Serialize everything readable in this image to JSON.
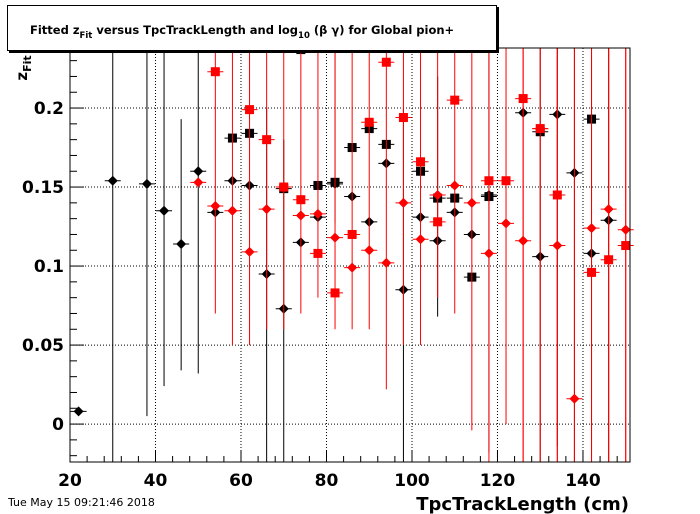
{
  "title": {
    "prefix": "Fitted  z",
    "sub": "Fit",
    "middle": "  versus TpcTrackLength and log",
    "sub2": "10",
    "suffix": " (β γ) for Global pion+"
  },
  "footer": "Tue May 15 09:21:46 2018",
  "colors": {
    "black_series": "#000000",
    "red_series": "#ff0000",
    "frame": "#000000"
  },
  "chart_data": {
    "type": "scatter",
    "title": "Fitted  zFit  versus TpcTrackLength and log10 (β γ) for Global pion+",
    "xlabel": "TpcTrackLength (cm)",
    "ylabel": "zFit",
    "xlim": [
      20,
      151
    ],
    "ylim": [
      -0.024,
      0.238
    ],
    "xticks": [
      20,
      40,
      60,
      80,
      100,
      120,
      140
    ],
    "xtick_labels": [
      "20",
      "40",
      "60",
      "80",
      "100",
      "120",
      "140"
    ],
    "yticks": [
      0,
      0.05,
      0.1,
      0.15,
      0.2
    ],
    "ytick_labels": [
      "0",
      "0.05",
      "0.1",
      "0.15",
      "0.2"
    ],
    "grid": true,
    "series": [
      {
        "marker": "square",
        "color": "#000000",
        "points": [
          {
            "x": 58,
            "y": 0.181,
            "ylo": 0.181,
            "yhi": 0.181
          },
          {
            "x": 62,
            "y": 0.184,
            "ylo": 0.184,
            "yhi": 0.184
          },
          {
            "x": 70,
            "y": 0.149,
            "ylo": 0.149,
            "yhi": 0.149
          },
          {
            "x": 74,
            "y": 0.237,
            "ylo": 0.237,
            "yhi": 0.237
          },
          {
            "x": 78,
            "y": 0.151,
            "ylo": 0.151,
            "yhi": 0.151
          },
          {
            "x": 82,
            "y": 0.153,
            "ylo": 0.127,
            "yhi": 0.238
          },
          {
            "x": 86,
            "y": 0.175,
            "ylo": 0.175,
            "yhi": 0.175
          },
          {
            "x": 90,
            "y": 0.187,
            "ylo": 0.187,
            "yhi": 0.187
          },
          {
            "x": 94,
            "y": 0.177,
            "ylo": 0.177,
            "yhi": 0.177
          },
          {
            "x": 102,
            "y": 0.16,
            "ylo": 0.16,
            "yhi": 0.16
          },
          {
            "x": 106,
            "y": 0.143,
            "ylo": 0.143,
            "yhi": 0.143
          },
          {
            "x": 110,
            "y": 0.143,
            "ylo": 0.143,
            "yhi": 0.143
          },
          {
            "x": 114,
            "y": 0.093,
            "ylo": 0.093,
            "yhi": 0.093
          },
          {
            "x": 118,
            "y": 0.144,
            "ylo": 0.144,
            "yhi": 0.144
          },
          {
            "x": 130,
            "y": 0.185,
            "ylo": 0.185,
            "yhi": 0.185
          },
          {
            "x": 142,
            "y": 0.193,
            "ylo": 0.193,
            "yhi": 0.193
          }
        ]
      },
      {
        "marker": "diamond",
        "color": "#000000",
        "points": [
          {
            "x": 22,
            "y": 0.008,
            "ylo": 0.008,
            "yhi": 0.008
          },
          {
            "x": 30,
            "y": 0.154,
            "ylo": -0.024,
            "yhi": 0.238
          },
          {
            "x": 38,
            "y": 0.152,
            "ylo": 0.005,
            "yhi": 0.238
          },
          {
            "x": 42,
            "y": 0.135,
            "ylo": 0.024,
            "yhi": 0.238
          },
          {
            "x": 46,
            "y": 0.114,
            "ylo": 0.034,
            "yhi": 0.193
          },
          {
            "x": 50,
            "y": 0.16,
            "ylo": 0.032,
            "yhi": 0.238
          },
          {
            "x": 54,
            "y": 0.134,
            "ylo": 0.134,
            "yhi": 0.134
          },
          {
            "x": 58,
            "y": 0.154,
            "ylo": 0.154,
            "yhi": 0.154
          },
          {
            "x": 62,
            "y": 0.151,
            "ylo": 0.151,
            "yhi": 0.151
          },
          {
            "x": 66,
            "y": 0.095,
            "ylo": -0.024,
            "yhi": 0.2
          },
          {
            "x": 70,
            "y": 0.073,
            "ylo": -0.024,
            "yhi": 0.18
          },
          {
            "x": 74,
            "y": 0.115,
            "ylo": 0.115,
            "yhi": 0.115
          },
          {
            "x": 78,
            "y": 0.131,
            "ylo": 0.131,
            "yhi": 0.131
          },
          {
            "x": 82,
            "y": 0.152,
            "ylo": 0.152,
            "yhi": 0.152
          },
          {
            "x": 86,
            "y": 0.144,
            "ylo": 0.144,
            "yhi": 0.144
          },
          {
            "x": 90,
            "y": 0.128,
            "ylo": 0.128,
            "yhi": 0.128
          },
          {
            "x": 94,
            "y": 0.165,
            "ylo": 0.165,
            "yhi": 0.165
          },
          {
            "x": 98,
            "y": 0.085,
            "ylo": -0.024,
            "yhi": 0.2
          },
          {
            "x": 102,
            "y": 0.131,
            "ylo": 0.131,
            "yhi": 0.131
          },
          {
            "x": 106,
            "y": 0.116,
            "ylo": 0.068,
            "yhi": 0.22
          },
          {
            "x": 110,
            "y": 0.134,
            "ylo": 0.134,
            "yhi": 0.134
          },
          {
            "x": 114,
            "y": 0.12,
            "ylo": 0.12,
            "yhi": 0.12
          },
          {
            "x": 118,
            "y": 0.145,
            "ylo": -0.018,
            "yhi": 0.238
          },
          {
            "x": 126,
            "y": 0.197,
            "ylo": 0.197,
            "yhi": 0.197
          },
          {
            "x": 130,
            "y": 0.106,
            "ylo": -0.024,
            "yhi": 0.238
          },
          {
            "x": 134,
            "y": 0.196,
            "ylo": -0.014,
            "yhi": 0.238
          },
          {
            "x": 138,
            "y": 0.159,
            "ylo": -0.024,
            "yhi": 0.238
          },
          {
            "x": 142,
            "y": 0.108,
            "ylo": -0.024,
            "yhi": 0.238
          },
          {
            "x": 146,
            "y": 0.129,
            "ylo": -0.024,
            "yhi": 0.238
          }
        ]
      },
      {
        "marker": "square",
        "color": "#ff0000",
        "points": [
          {
            "x": 54,
            "y": 0.223,
            "ylo": 0.223,
            "yhi": 0.223
          },
          {
            "x": 62,
            "y": 0.199,
            "ylo": 0.199,
            "yhi": 0.199
          },
          {
            "x": 66,
            "y": 0.18,
            "ylo": 0.18,
            "yhi": 0.18
          },
          {
            "x": 70,
            "y": 0.15,
            "ylo": 0.15,
            "yhi": 0.15
          },
          {
            "x": 74,
            "y": 0.142,
            "ylo": 0.142,
            "yhi": 0.142
          },
          {
            "x": 78,
            "y": 0.108,
            "ylo": 0.108,
            "yhi": 0.108
          },
          {
            "x": 82,
            "y": 0.083,
            "ylo": 0.083,
            "yhi": 0.083
          },
          {
            "x": 86,
            "y": 0.12,
            "ylo": 0.12,
            "yhi": 0.12
          },
          {
            "x": 90,
            "y": 0.191,
            "ylo": 0.191,
            "yhi": 0.191
          },
          {
            "x": 94,
            "y": 0.229,
            "ylo": 0.229,
            "yhi": 0.229
          },
          {
            "x": 98,
            "y": 0.194,
            "ylo": 0.194,
            "yhi": 0.194
          },
          {
            "x": 102,
            "y": 0.166,
            "ylo": 0.166,
            "yhi": 0.166
          },
          {
            "x": 106,
            "y": 0.128,
            "ylo": 0.128,
            "yhi": 0.128
          },
          {
            "x": 110,
            "y": 0.205,
            "ylo": 0.205,
            "yhi": 0.205
          },
          {
            "x": 118,
            "y": 0.154,
            "ylo": 0.154,
            "yhi": 0.154
          },
          {
            "x": 122,
            "y": 0.154,
            "ylo": 0.154,
            "yhi": 0.154
          },
          {
            "x": 126,
            "y": 0.206,
            "ylo": -0.024,
            "yhi": 0.238
          },
          {
            "x": 130,
            "y": 0.187,
            "ylo": 0.187,
            "yhi": 0.187
          },
          {
            "x": 134,
            "y": 0.145,
            "ylo": -0.024,
            "yhi": 0.238
          },
          {
            "x": 142,
            "y": 0.096,
            "ylo": 0.096,
            "yhi": 0.096
          },
          {
            "x": 146,
            "y": 0.104,
            "ylo": -0.024,
            "yhi": 0.238
          },
          {
            "x": 150,
            "y": 0.113,
            "ylo": -0.024,
            "yhi": 0.238
          }
        ]
      },
      {
        "marker": "diamond",
        "color": "#ff0000",
        "points": [
          {
            "x": 50,
            "y": 0.153,
            "ylo": 0.153,
            "yhi": 0.153
          },
          {
            "x": 54,
            "y": 0.138,
            "ylo": 0.07,
            "yhi": 0.238
          },
          {
            "x": 58,
            "y": 0.135,
            "ylo": 0.05,
            "yhi": 0.238
          },
          {
            "x": 62,
            "y": 0.109,
            "ylo": 0.05,
            "yhi": 0.238
          },
          {
            "x": 66,
            "y": 0.136,
            "ylo": 0.06,
            "yhi": 0.238
          },
          {
            "x": 70,
            "y": 0.15,
            "ylo": 0.06,
            "yhi": 0.238
          },
          {
            "x": 74,
            "y": 0.132,
            "ylo": 0.07,
            "yhi": 0.238
          },
          {
            "x": 78,
            "y": 0.133,
            "ylo": 0.08,
            "yhi": 0.238
          },
          {
            "x": 82,
            "y": 0.118,
            "ylo": 0.06,
            "yhi": 0.238
          },
          {
            "x": 86,
            "y": 0.099,
            "ylo": 0.06,
            "yhi": 0.238
          },
          {
            "x": 90,
            "y": 0.11,
            "ylo": 0.06,
            "yhi": 0.238
          },
          {
            "x": 94,
            "y": 0.102,
            "ylo": 0.022,
            "yhi": 0.238
          },
          {
            "x": 98,
            "y": 0.14,
            "ylo": 0.05,
            "yhi": 0.238
          },
          {
            "x": 102,
            "y": 0.117,
            "ylo": 0.05,
            "yhi": 0.238
          },
          {
            "x": 106,
            "y": 0.145,
            "ylo": 0.08,
            "yhi": 0.238
          },
          {
            "x": 110,
            "y": 0.151,
            "ylo": 0.07,
            "yhi": 0.238
          },
          {
            "x": 114,
            "y": 0.14,
            "ylo": -0.004,
            "yhi": 0.238
          },
          {
            "x": 118,
            "y": 0.108,
            "ylo": -0.024,
            "yhi": 0.238
          },
          {
            "x": 122,
            "y": 0.127,
            "ylo": 0.0,
            "yhi": 0.238
          },
          {
            "x": 126,
            "y": 0.116,
            "ylo": -0.024,
            "yhi": 0.238
          },
          {
            "x": 130,
            "y": 0.187,
            "ylo": -0.024,
            "yhi": 0.238
          },
          {
            "x": 134,
            "y": 0.113,
            "ylo": -0.024,
            "yhi": 0.238
          },
          {
            "x": 138,
            "y": 0.016,
            "ylo": -0.024,
            "yhi": 0.238
          },
          {
            "x": 142,
            "y": 0.124,
            "ylo": -0.024,
            "yhi": 0.238
          },
          {
            "x": 146,
            "y": 0.136,
            "ylo": -0.024,
            "yhi": 0.238
          },
          {
            "x": 150,
            "y": 0.123,
            "ylo": -0.024,
            "yhi": 0.238
          }
        ]
      }
    ]
  }
}
